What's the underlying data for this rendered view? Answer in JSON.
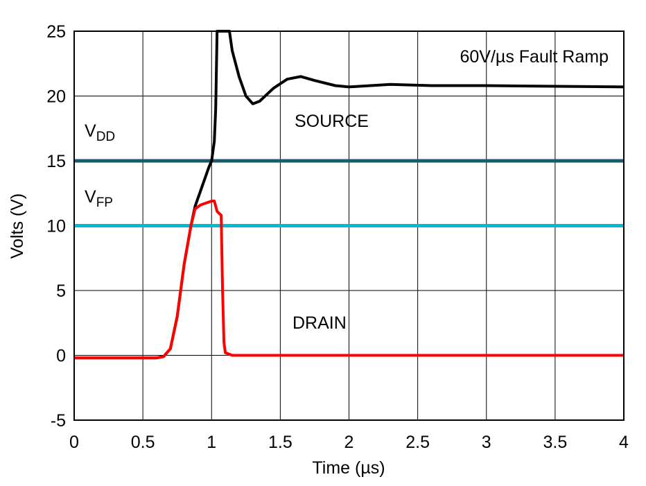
{
  "chart_data": {
    "type": "line",
    "title": "",
    "annotation": "60V/µs Fault Ramp",
    "xlabel": "Time (µs)",
    "ylabel": "Volts (V)",
    "xlim": [
      0,
      4
    ],
    "ylim": [
      -5,
      25
    ],
    "xticks": [
      "0",
      "0.5",
      "1",
      "1.5",
      "2",
      "2.5",
      "3",
      "3.5",
      "4"
    ],
    "yticks": [
      "-5",
      "0",
      "5",
      "10",
      "15",
      "20",
      "25"
    ],
    "grid": true,
    "series": [
      {
        "name": "SOURCE",
        "color": "#000000",
        "x": [
          0,
          0.6,
          0.65,
          0.7,
          0.75,
          0.8,
          0.85,
          0.88,
          0.93,
          0.98,
          1.0,
          1.02,
          1.03,
          1.04,
          1.13,
          1.15,
          1.2,
          1.25,
          1.3,
          1.35,
          1.45,
          1.55,
          1.65,
          1.75,
          1.9,
          2.0,
          2.3,
          2.6,
          3.0,
          4.0
        ],
        "y": [
          -0.2,
          -0.2,
          -0.1,
          0.5,
          3,
          7,
          10,
          11.5,
          13,
          14.5,
          15,
          16.5,
          19,
          25,
          25,
          23.5,
          21.5,
          20,
          19.4,
          19.6,
          20.6,
          21.3,
          21.5,
          21.2,
          20.8,
          20.7,
          20.9,
          20.8,
          20.8,
          20.7
        ]
      },
      {
        "name": "DRAIN",
        "color": "#ff0000",
        "x": [
          0,
          0.6,
          0.65,
          0.7,
          0.75,
          0.8,
          0.85,
          0.88,
          0.92,
          1.0,
          1.02,
          1.04,
          1.07,
          1.08,
          1.09,
          1.1,
          1.15,
          4.0
        ],
        "y": [
          -0.2,
          -0.2,
          -0.1,
          0.5,
          3,
          7,
          10,
          11.3,
          11.6,
          11.9,
          11.9,
          11.1,
          10.8,
          5,
          1,
          0.2,
          0,
          0
        ]
      }
    ],
    "reference_lines": [
      {
        "label_main": "V",
        "label_sub": "DD",
        "y": 15,
        "color": "#1a5a6a"
      },
      {
        "label_main": "V",
        "label_sub": "FP",
        "y": 10,
        "color": "#00bcd0"
      }
    ],
    "labels": {
      "source": "SOURCE",
      "drain": "DRAIN"
    }
  }
}
